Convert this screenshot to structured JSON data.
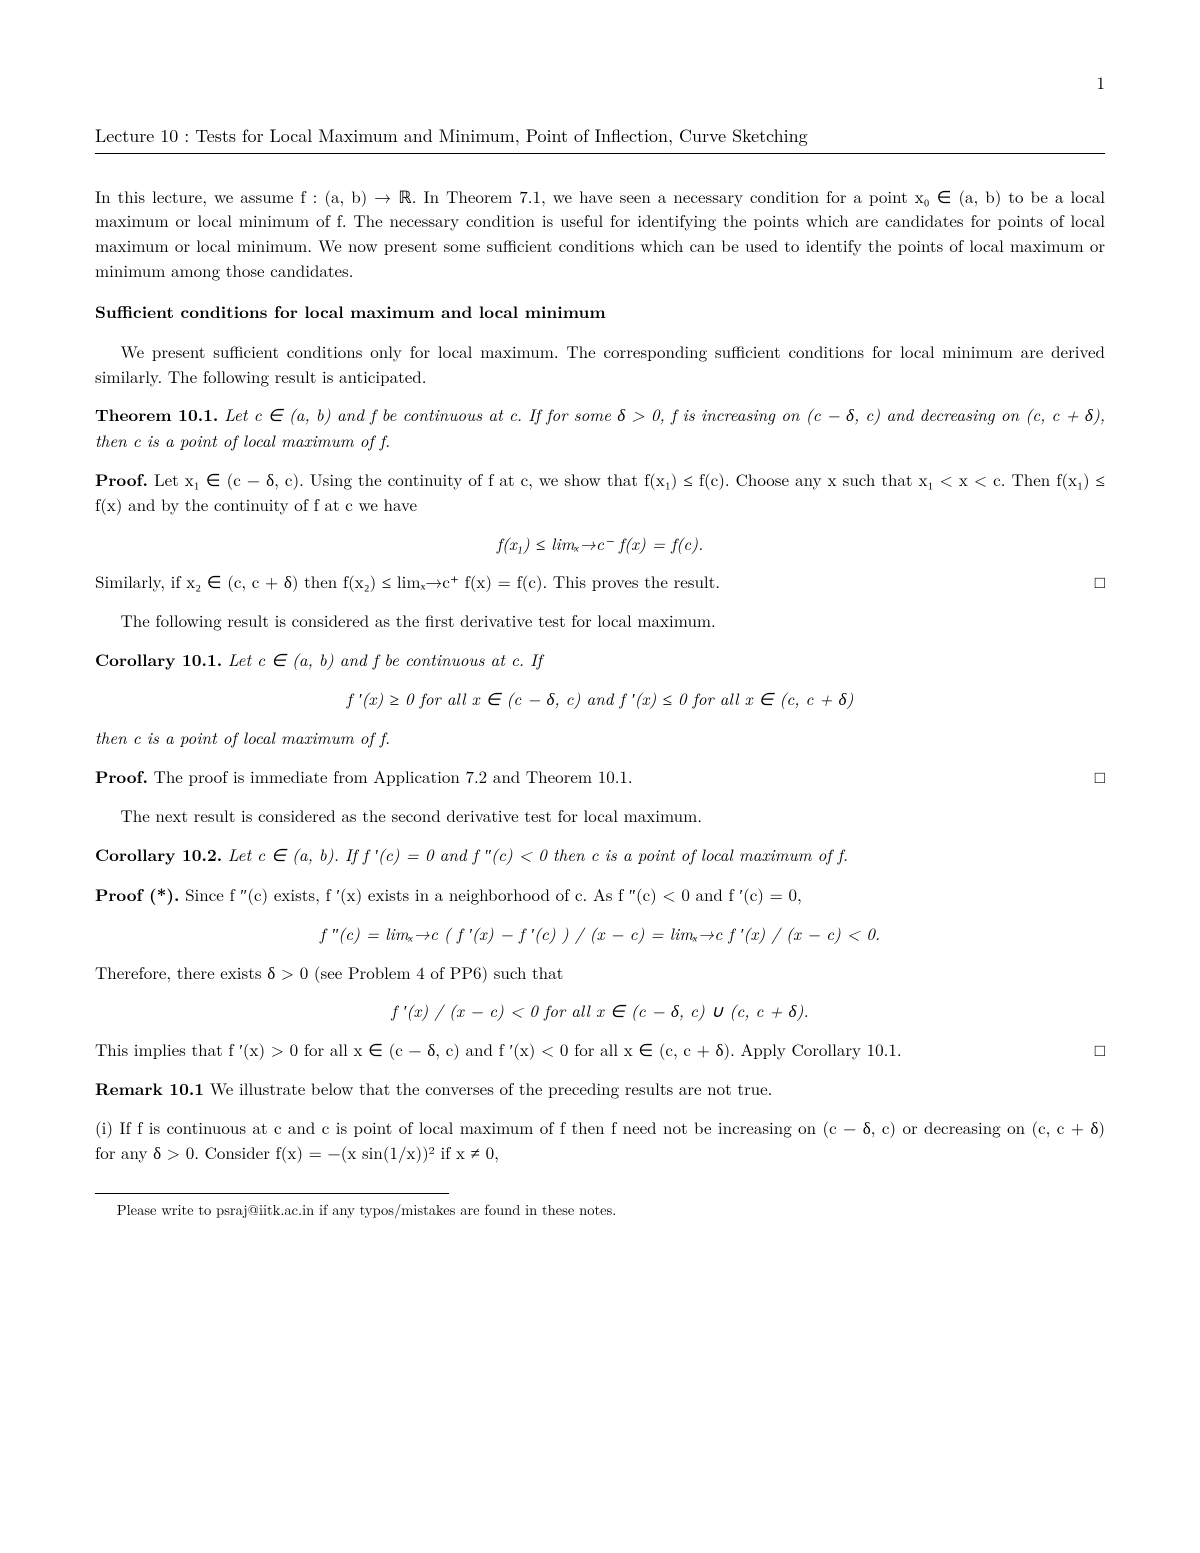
{
  "page_number": "1",
  "lecture_title": "Lecture 10 : Tests for Local Maximum and Minimum, Point of Inflection, Curve Sketching",
  "intro": "In this lecture, we assume f : (a, b) → ℝ. In Theorem 7.1, we have seen a necessary condition for a point x₀ ∈ (a, b) to be a local maximum or local minimum of f. The necessary condition is useful for identifying the points which are candidates for points of local maximum or local minimum. We now present some sufficient conditions which can be used to identify the points of local maximum or minimum among those candidates.",
  "section_heading": "Sufficient conditions for local maximum and local minimum",
  "section_intro": "We present sufficient conditions only for local maximum. The corresponding sufficient conditions for local minimum are derived similarly. The following result is anticipated.",
  "thm101_head": "Theorem 10.1.",
  "thm101_body": "Let c ∈ (a, b) and f be continuous at c. If for some δ > 0, f is increasing on (c − δ, c) and decreasing on (c, c + δ), then c is a point of local maximum of f.",
  "proof1_head": "Proof.",
  "proof1_p1": "Let x₁ ∈ (c − δ, c). Using the continuity of f at c, we show that f(x₁) ≤ f(c). Choose any x such that x₁ < x < c. Then f(x₁) ≤ f(x) and by the continuity of f at c we have",
  "proof1_disp": "f(x₁)  ≤  limₓ→c⁻ f(x)  =  f(c).",
  "proof1_p2": "Similarly, if x₂ ∈ (c, c + δ) then f(x₂) ≤ limₓ→c⁺ f(x) = f(c). This proves the result.",
  "after_thm101": "The following result is considered as the first derivative test for local maximum.",
  "cor101_head": "Corollary 10.1.",
  "cor101_body1": "Let c ∈ (a, b) and f be continuous at c. If",
  "cor101_disp": "f ′(x) ≥ 0  for all  x ∈ (c − δ, c)  and  f ′(x) ≤ 0  for all  x ∈ (c, c + δ)",
  "cor101_body2": "then c is a point of local maximum of f.",
  "proof2_head": "Proof.",
  "proof2_body": "The proof is immediate from Application 7.2 and Theorem 10.1.",
  "after_cor101": "The next result is considered as the second derivative test for local maximum.",
  "cor102_head": "Corollary 10.2.",
  "cor102_body": "Let c ∈ (a, b). If f ′(c) = 0 and f ″(c) < 0 then c is a point of local maximum of f.",
  "proof3_head": "Proof (*).",
  "proof3_p1": "Since f ″(c) exists, f ′(x) exists in a neighborhood of c. As f ″(c) < 0 and f ′(c) = 0,",
  "proof3_disp1": "f ″(c)  =  limₓ→c  ( f ′(x) − f ′(c) ) / (x − c)  =  limₓ→c  f ′(x) / (x − c)  <  0.",
  "proof3_p2": "Therefore, there exists δ > 0 (see Problem 4 of PP6) such that",
  "proof3_disp2": "f ′(x) / (x − c)  <  0  for all  x ∈ (c − δ, c) ∪ (c, c + δ).",
  "proof3_p3": "This implies that f ′(x) > 0 for all x ∈ (c − δ, c) and f ′(x) < 0 for all x ∈ (c, c + δ). Apply Corollary 10.1.",
  "remark_head": "Remark 10.1",
  "remark_body": "We illustrate below that the converses of the preceding results are not true.",
  "item_i": "(i) If f is continuous at c and c is point of local maximum of f then f need not be increasing on (c − δ, c) or decreasing on (c, c + δ) for any δ > 0. Consider f(x) = −(x sin(1/x))² if x ≠ 0,",
  "footer": "Please write to psraj@iitk.ac.in if any typos/mistakes are found in these notes.",
  "qed": "□",
  "colors": {
    "text": "#000000",
    "bg": "#ffffff",
    "rule": "#000000"
  },
  "fontsize_pt": {
    "body": 12,
    "title": 12,
    "footer": 10
  }
}
